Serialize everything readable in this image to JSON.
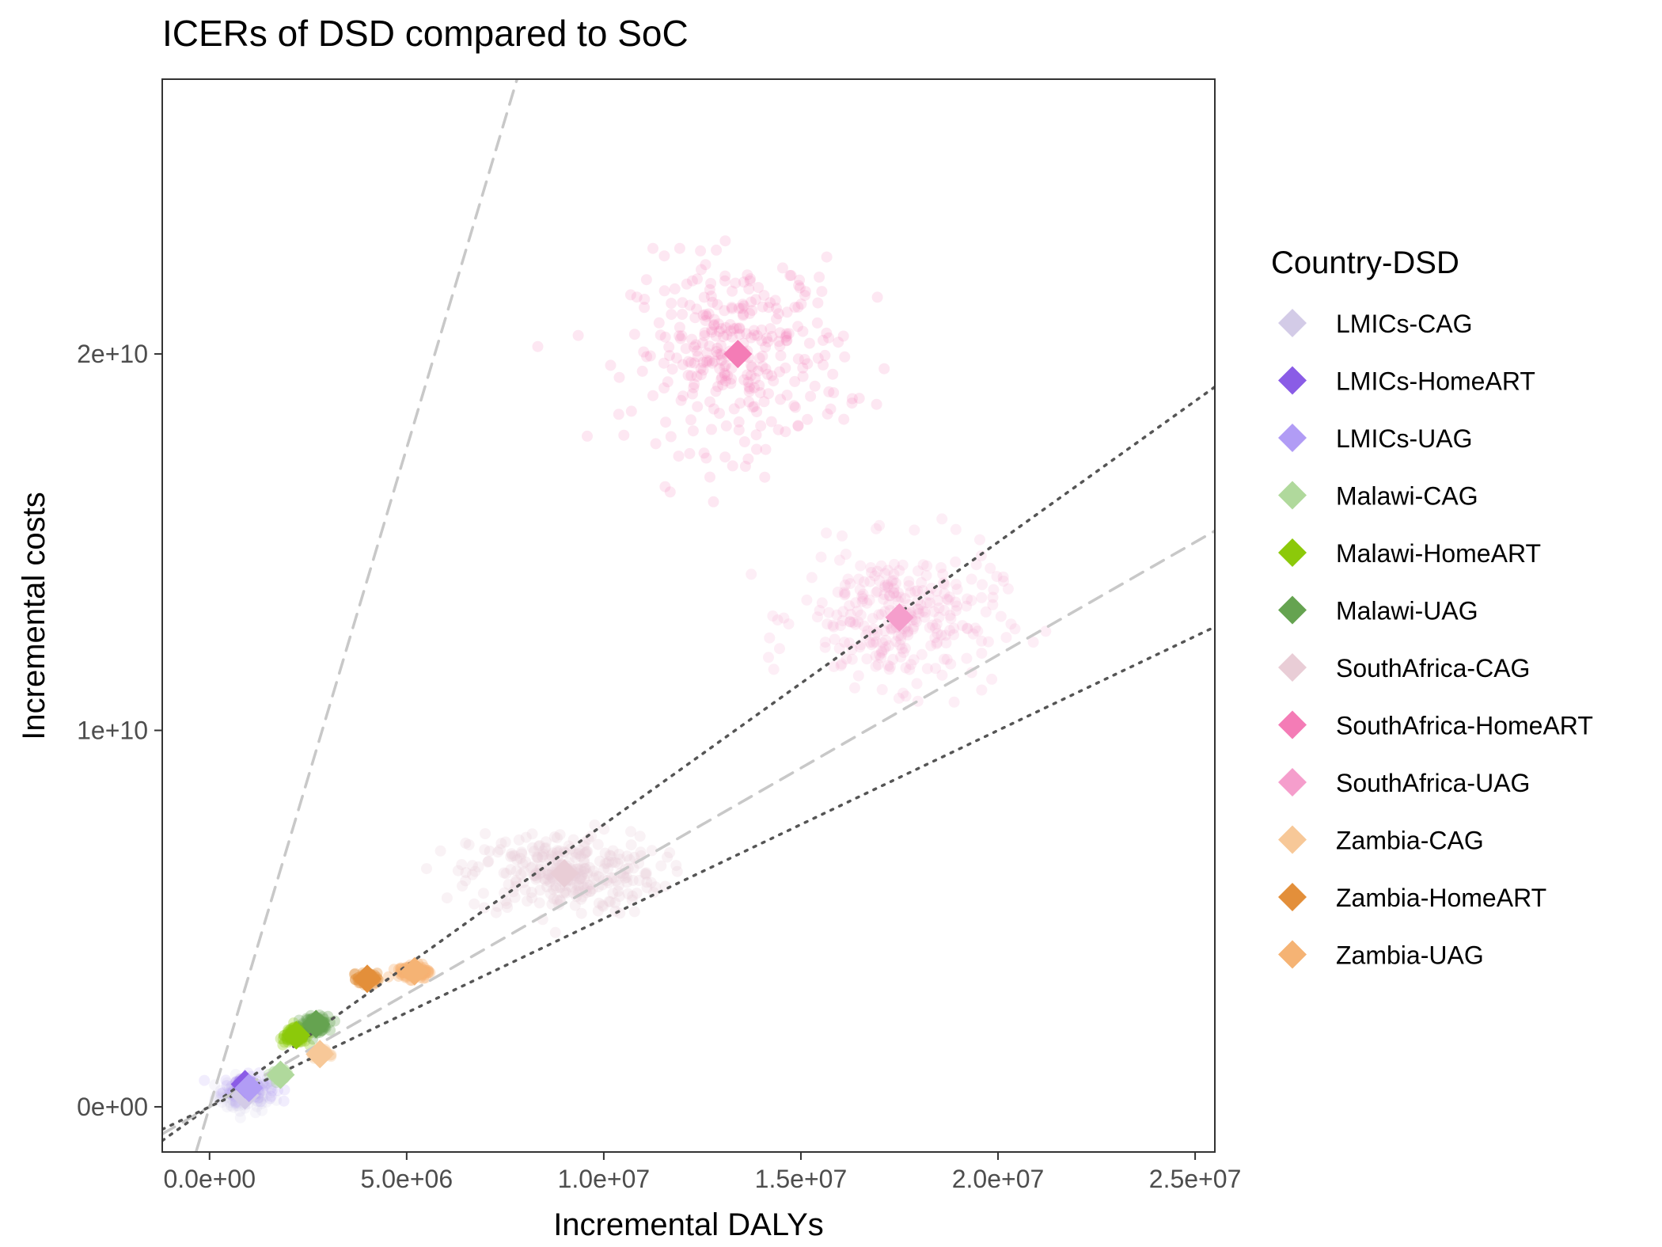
{
  "chart_data": {
    "type": "scatter",
    "title": "ICERs of DSD compared to SoC",
    "xlabel": "Incremental DALYs",
    "ylabel": "Incremental costs",
    "xlim": [
      -1200000,
      25500000
    ],
    "ylim": [
      -1200000000,
      27300000000
    ],
    "x_ticks": [
      {
        "value": 0,
        "label": "0.0e+00"
      },
      {
        "value": 5000000,
        "label": "5.0e+06"
      },
      {
        "value": 10000000,
        "label": "1.0e+07"
      },
      {
        "value": 15000000,
        "label": "1.5e+07"
      },
      {
        "value": 20000000,
        "label": "2.0e+07"
      },
      {
        "value": 25000000,
        "label": "2.5e+07"
      }
    ],
    "y_ticks": [
      {
        "value": 0,
        "label": "0e+00"
      },
      {
        "value": 10000000000,
        "label": "1e+10"
      },
      {
        "value": 20000000000,
        "label": "2e+10"
      }
    ],
    "grid": false,
    "legend_position": "right",
    "legend_title": "Country-DSD",
    "threshold_lines": [
      {
        "style": "dashed",
        "color": "#c8c8c8",
        "slope": 3500
      },
      {
        "style": "dotted",
        "color": "#555555",
        "slope": 750
      },
      {
        "style": "dashed",
        "color": "#c8c8c8",
        "slope": 600
      },
      {
        "style": "dotted",
        "color": "#555555",
        "slope": 500
      }
    ],
    "series": [
      {
        "name": "LMICs-CAG",
        "color": "#d3cbe7",
        "mean": [
          900000,
          300000000
        ],
        "spread": [
          750000,
          450000000
        ],
        "n": 90,
        "opacity": 0.18
      },
      {
        "name": "LMICs-HomeART",
        "color": "#8a5ce6",
        "mean": [
          900000,
          600000000
        ],
        "spread": [
          200000,
          120000000
        ],
        "n": 60,
        "opacity": 0.25
      },
      {
        "name": "LMICs-UAG",
        "color": "#b19cf5",
        "mean": [
          1000000,
          500000000
        ],
        "spread": [
          650000,
          350000000
        ],
        "n": 90,
        "opacity": 0.18
      },
      {
        "name": "Malawi-CAG",
        "color": "#b0d99c",
        "mean": [
          1800000,
          850000000
        ],
        "spread": [
          200000,
          120000000
        ],
        "n": 60,
        "opacity": 0.35
      },
      {
        "name": "Malawi-HomeART",
        "color": "#8cc90a",
        "mean": [
          2200000,
          1900000000
        ],
        "spread": [
          300000,
          200000000
        ],
        "n": 160,
        "opacity": 0.3
      },
      {
        "name": "Malawi-UAG",
        "color": "#65a350",
        "mean": [
          2700000,
          2200000000
        ],
        "spread": [
          300000,
          200000000
        ],
        "n": 120,
        "opacity": 0.3
      },
      {
        "name": "SouthAfrica-CAG",
        "color": "#e9cdd6",
        "mean": [
          9000000,
          6200000000
        ],
        "spread": [
          2400000,
          1100000000
        ],
        "n": 300,
        "opacity": 0.25
      },
      {
        "name": "SouthAfrica-HomeART",
        "color": "#f47cb6",
        "mean": [
          13400000,
          20000000000
        ],
        "spread": [
          2700000,
          2500000000
        ],
        "n": 320,
        "opacity": 0.18
      },
      {
        "name": "SouthAfrica-UAG",
        "color": "#f59ecc",
        "mean": [
          17500000,
          13000000000
        ],
        "spread": [
          2500000,
          1800000000
        ],
        "n": 300,
        "opacity": 0.18
      },
      {
        "name": "Zambia-CAG",
        "color": "#f7c898",
        "mean": [
          2800000,
          1400000000
        ],
        "spread": [
          200000,
          120000000
        ],
        "n": 50,
        "opacity": 0.35
      },
      {
        "name": "Zambia-HomeART",
        "color": "#e38f3a",
        "mean": [
          4000000,
          3400000000
        ],
        "spread": [
          250000,
          150000000
        ],
        "n": 80,
        "opacity": 0.35
      },
      {
        "name": "Zambia-UAG",
        "color": "#f5b374",
        "mean": [
          5200000,
          3600000000
        ],
        "spread": [
          400000,
          200000000
        ],
        "n": 120,
        "opacity": 0.35
      }
    ]
  }
}
